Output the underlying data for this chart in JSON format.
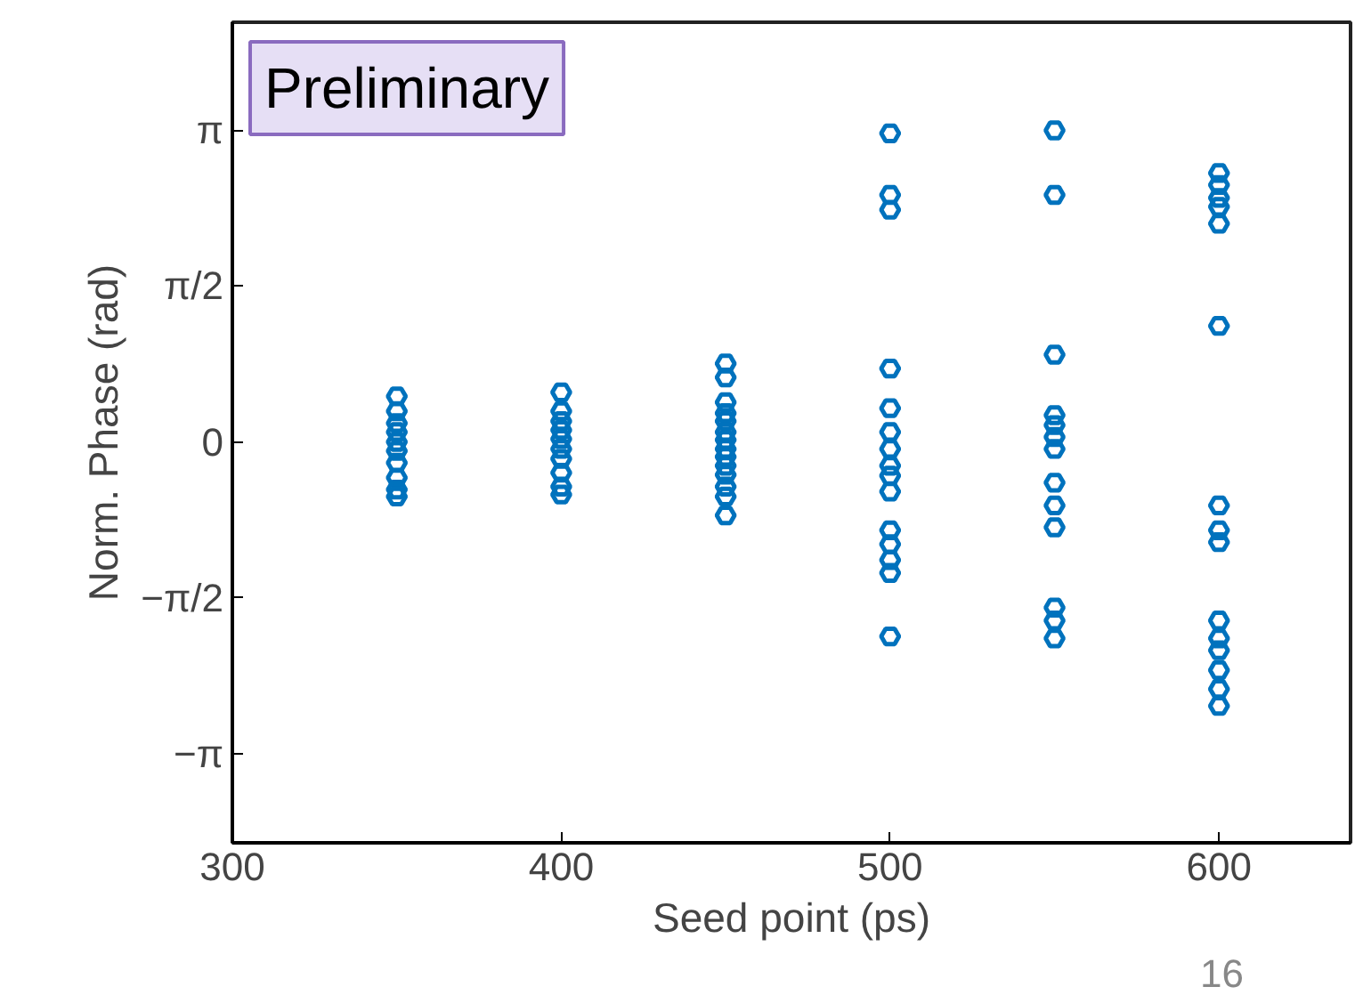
{
  "chart_data": {
    "type": "scatter",
    "xlabel": "Seed point (ps)",
    "ylabel": "Norm. Phase (rad)",
    "annotations": [
      "Preliminary",
      "16"
    ],
    "marker": "circle",
    "grid": false,
    "xlim": [
      300,
      640
    ],
    "xticks": [
      300,
      400,
      500,
      600
    ],
    "ylim": [
      -4.04,
      4.23
    ],
    "yticks": [
      {
        "value": -3.1416,
        "label": "−π"
      },
      {
        "value": -1.5708,
        "label": "−π/2"
      },
      {
        "value": 0,
        "label": "0"
      },
      {
        "value": 1.5708,
        "label": "π/2"
      },
      {
        "value": 3.1416,
        "label": "π"
      }
    ],
    "series": [
      {
        "color": "#0072bd",
        "x": [
          350,
          350,
          350,
          350,
          350,
          350,
          350,
          350,
          350,
          350,
          400,
          400,
          400,
          400,
          400,
          400,
          400,
          400,
          400,
          400,
          450,
          450,
          450,
          450,
          450,
          450,
          450,
          450,
          450,
          450,
          450,
          450,
          450,
          450,
          500,
          500,
          500,
          500,
          500,
          500,
          500,
          500,
          500,
          500,
          500,
          500,
          500,
          500,
          500,
          550,
          550,
          550,
          550,
          550,
          550,
          550,
          550,
          550,
          550,
          550,
          550,
          550,
          600,
          600,
          600,
          600,
          600,
          600,
          600,
          600,
          600,
          600,
          600,
          600,
          600,
          600,
          600
        ],
        "values": [
          0.46,
          0.31,
          0.19,
          0.1,
          0,
          -0.09,
          -0.21,
          -0.36,
          -0.48,
          -0.55,
          0.5,
          0.31,
          0.21,
          0.12,
          0.03,
          -0.07,
          -0.17,
          -0.31,
          -0.45,
          -0.53,
          0.79,
          0.65,
          0.4,
          0.29,
          0.21,
          0.1,
          0.02,
          -0.07,
          -0.15,
          -0.24,
          -0.33,
          -0.45,
          -0.55,
          -0.74,
          3.11,
          2.49,
          2.34,
          0.74,
          0.34,
          0.1,
          -0.07,
          -0.24,
          -0.34,
          -0.5,
          -0.89,
          -1.03,
          -1.19,
          -1.32,
          -1.96,
          3.14,
          2.49,
          0.88,
          0.27,
          0.17,
          0.05,
          -0.07,
          -0.41,
          -0.64,
          -0.86,
          -1.67,
          -1.8,
          -1.98,
          2.71,
          2.59,
          2.46,
          2.37,
          2.2,
          1.17,
          -0.64,
          -0.89,
          -1.01,
          -1.8,
          -1.98,
          -2.1,
          -2.3,
          -2.49,
          -2.66
        ]
      }
    ]
  }
}
